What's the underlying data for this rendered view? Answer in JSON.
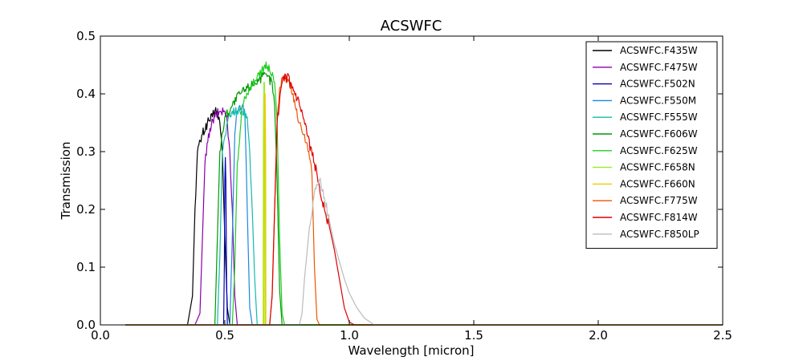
{
  "chart_data": {
    "type": "line",
    "title": "ACSWFC",
    "xlabel": "Wavelength [micron]",
    "ylabel": "Transmission",
    "xlim": [
      0.0,
      2.5
    ],
    "ylim": [
      0.0,
      0.5
    ],
    "xticks": [
      "0.0",
      "0.5",
      "1.0",
      "1.5",
      "2.0",
      "2.5"
    ],
    "yticks": [
      "0.0",
      "0.1",
      "0.2",
      "0.3",
      "0.4",
      "0.5"
    ],
    "grid": false,
    "legend_position": "top-right",
    "series": [
      {
        "name": "ACSWFC.F435W",
        "color": "#000000",
        "points": [
          [
            0.1,
            0
          ],
          [
            0.35,
            0
          ],
          [
            0.37,
            0.05
          ],
          [
            0.38,
            0.2
          ],
          [
            0.39,
            0.3
          ],
          [
            0.41,
            0.33
          ],
          [
            0.43,
            0.35
          ],
          [
            0.45,
            0.36
          ],
          [
            0.46,
            0.37
          ],
          [
            0.47,
            0.37
          ],
          [
            0.48,
            0.35
          ],
          [
            0.49,
            0.3
          ],
          [
            0.5,
            0.15
          ],
          [
            0.51,
            0.03
          ],
          [
            0.52,
            0
          ],
          [
            2.5,
            0
          ]
        ]
      },
      {
        "name": "ACSWFC.F475W",
        "color": "#8800aa",
        "points": [
          [
            0.1,
            0
          ],
          [
            0.38,
            0
          ],
          [
            0.4,
            0.02
          ],
          [
            0.41,
            0.15
          ],
          [
            0.42,
            0.28
          ],
          [
            0.44,
            0.34
          ],
          [
            0.46,
            0.36
          ],
          [
            0.48,
            0.37
          ],
          [
            0.5,
            0.37
          ],
          [
            0.51,
            0.35
          ],
          [
            0.52,
            0.3
          ],
          [
            0.53,
            0.2
          ],
          [
            0.54,
            0.05
          ],
          [
            0.55,
            0
          ],
          [
            2.5,
            0
          ]
        ]
      },
      {
        "name": "ACSWFC.F502N",
        "color": "#0000bb",
        "points": [
          [
            0.1,
            0
          ],
          [
            0.495,
            0
          ],
          [
            0.498,
            0.1
          ],
          [
            0.5,
            0.25
          ],
          [
            0.502,
            0.29
          ],
          [
            0.504,
            0.25
          ],
          [
            0.507,
            0.08
          ],
          [
            0.51,
            0
          ],
          [
            2.5,
            0
          ]
        ]
      },
      {
        "name": "ACSWFC.F550M",
        "color": "#1a88dd",
        "points": [
          [
            0.1,
            0
          ],
          [
            0.52,
            0
          ],
          [
            0.53,
            0.15
          ],
          [
            0.54,
            0.33
          ],
          [
            0.55,
            0.37
          ],
          [
            0.56,
            0.38
          ],
          [
            0.57,
            0.38
          ],
          [
            0.58,
            0.37
          ],
          [
            0.59,
            0.2
          ],
          [
            0.6,
            0.03
          ],
          [
            0.61,
            0
          ],
          [
            2.5,
            0
          ]
        ]
      },
      {
        "name": "ACSWFC.F555W",
        "color": "#11bbaa",
        "points": [
          [
            0.1,
            0
          ],
          [
            0.47,
            0
          ],
          [
            0.48,
            0.12
          ],
          [
            0.49,
            0.3
          ],
          [
            0.51,
            0.35
          ],
          [
            0.53,
            0.37
          ],
          [
            0.55,
            0.37
          ],
          [
            0.57,
            0.37
          ],
          [
            0.59,
            0.36
          ],
          [
            0.6,
            0.3
          ],
          [
            0.61,
            0.2
          ],
          [
            0.62,
            0.08
          ],
          [
            0.63,
            0
          ],
          [
            2.5,
            0
          ]
        ]
      },
      {
        "name": "ACSWFC.F606W",
        "color": "#009900",
        "points": [
          [
            0.1,
            0
          ],
          [
            0.46,
            0
          ],
          [
            0.47,
            0.15
          ],
          [
            0.48,
            0.3
          ],
          [
            0.5,
            0.36
          ],
          [
            0.53,
            0.38
          ],
          [
            0.56,
            0.4
          ],
          [
            0.59,
            0.41
          ],
          [
            0.62,
            0.42
          ],
          [
            0.65,
            0.43
          ],
          [
            0.67,
            0.43
          ],
          [
            0.69,
            0.42
          ],
          [
            0.7,
            0.38
          ],
          [
            0.71,
            0.25
          ],
          [
            0.72,
            0.06
          ],
          [
            0.73,
            0
          ],
          [
            2.5,
            0
          ]
        ]
      },
      {
        "name": "ACSWFC.F625W",
        "color": "#22cc22",
        "points": [
          [
            0.1,
            0
          ],
          [
            0.53,
            0
          ],
          [
            0.54,
            0.1
          ],
          [
            0.55,
            0.28
          ],
          [
            0.57,
            0.38
          ],
          [
            0.6,
            0.41
          ],
          [
            0.63,
            0.43
          ],
          [
            0.66,
            0.45
          ],
          [
            0.68,
            0.44
          ],
          [
            0.7,
            0.42
          ],
          [
            0.71,
            0.35
          ],
          [
            0.72,
            0.15
          ],
          [
            0.73,
            0.02
          ],
          [
            0.74,
            0
          ],
          [
            2.5,
            0
          ]
        ]
      },
      {
        "name": "ACSWFC.F658N",
        "color": "#99ee22",
        "points": [
          [
            0.1,
            0
          ],
          [
            0.654,
            0
          ],
          [
            0.655,
            0.35
          ],
          [
            0.657,
            0.42
          ],
          [
            0.659,
            0.42
          ],
          [
            0.661,
            0.35
          ],
          [
            0.662,
            0
          ],
          [
            2.5,
            0
          ]
        ]
      },
      {
        "name": "ACSWFC.F660N",
        "color": "#eecc00",
        "points": [
          [
            0.1,
            0
          ],
          [
            0.657,
            0
          ],
          [
            0.658,
            0.3
          ],
          [
            0.66,
            0.4
          ],
          [
            0.662,
            0.4
          ],
          [
            0.664,
            0.3
          ],
          [
            0.665,
            0
          ],
          [
            2.5,
            0
          ]
        ]
      },
      {
        "name": "ACSWFC.F775W",
        "color": "#ee5500",
        "points": [
          [
            0.1,
            0
          ],
          [
            0.68,
            0
          ],
          [
            0.69,
            0.05
          ],
          [
            0.7,
            0.2
          ],
          [
            0.71,
            0.35
          ],
          [
            0.72,
            0.41
          ],
          [
            0.74,
            0.43
          ],
          [
            0.76,
            0.42
          ],
          [
            0.78,
            0.39
          ],
          [
            0.8,
            0.35
          ],
          [
            0.82,
            0.33
          ],
          [
            0.84,
            0.29
          ],
          [
            0.85,
            0.26
          ],
          [
            0.86,
            0.1
          ],
          [
            0.87,
            0.01
          ],
          [
            0.88,
            0
          ],
          [
            2.5,
            0
          ]
        ]
      },
      {
        "name": "ACSWFC.F814W",
        "color": "#dd0000",
        "points": [
          [
            0.1,
            0
          ],
          [
            0.68,
            0
          ],
          [
            0.69,
            0.05
          ],
          [
            0.7,
            0.2
          ],
          [
            0.71,
            0.35
          ],
          [
            0.73,
            0.42
          ],
          [
            0.75,
            0.43
          ],
          [
            0.77,
            0.41
          ],
          [
            0.8,
            0.38
          ],
          [
            0.83,
            0.33
          ],
          [
            0.86,
            0.28
          ],
          [
            0.88,
            0.24
          ],
          [
            0.9,
            0.2
          ],
          [
            0.92,
            0.17
          ],
          [
            0.94,
            0.13
          ],
          [
            0.96,
            0.08
          ],
          [
            0.98,
            0.03
          ],
          [
            1.0,
            0.005
          ],
          [
            1.02,
            0
          ],
          [
            2.5,
            0
          ]
        ]
      },
      {
        "name": "ACSWFC.F850LP",
        "color": "#bbbbbb",
        "points": [
          [
            0.1,
            0
          ],
          [
            0.8,
            0
          ],
          [
            0.81,
            0.02
          ],
          [
            0.82,
            0.08
          ],
          [
            0.84,
            0.17
          ],
          [
            0.86,
            0.23
          ],
          [
            0.88,
            0.25
          ],
          [
            0.9,
            0.22
          ],
          [
            0.92,
            0.18
          ],
          [
            0.94,
            0.14
          ],
          [
            0.96,
            0.11
          ],
          [
            0.98,
            0.08
          ],
          [
            1.0,
            0.055
          ],
          [
            1.03,
            0.03
          ],
          [
            1.06,
            0.012
          ],
          [
            1.09,
            0.003
          ],
          [
            1.1,
            0
          ],
          [
            2.5,
            0
          ]
        ]
      }
    ]
  }
}
